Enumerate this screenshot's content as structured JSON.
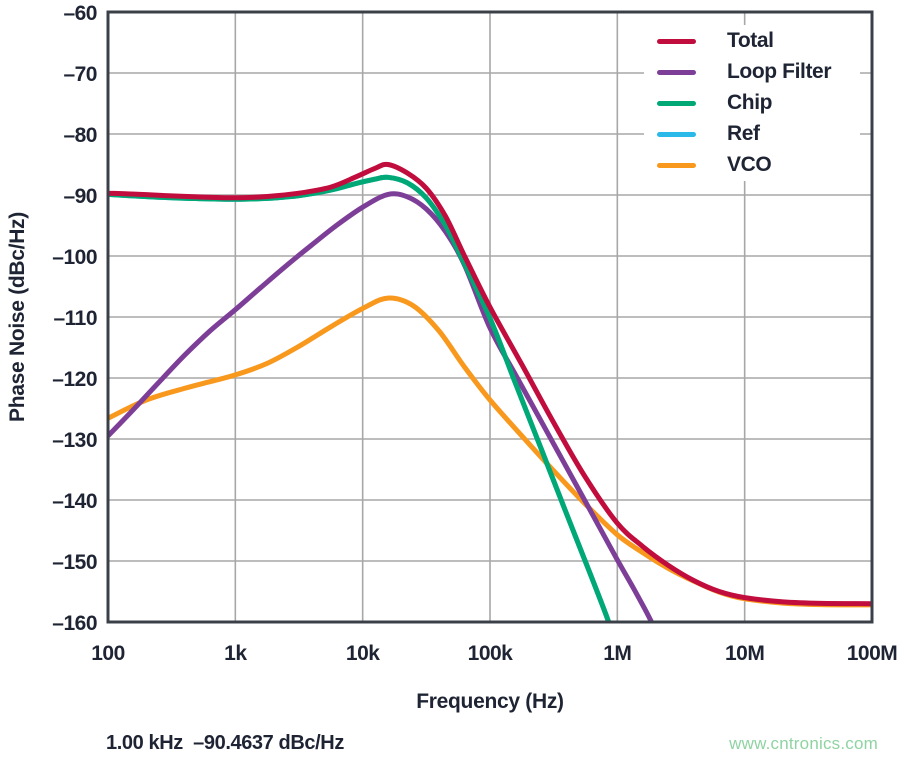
{
  "axes": {
    "x": {
      "label": "Frequency (Hz)",
      "ticks": [
        "100",
        "1k",
        "10k",
        "100k",
        "1M",
        "10M",
        "100M"
      ]
    },
    "y": {
      "label": "Phase Noise (dBc/Hz)",
      "ticks": [
        "–60",
        "–70",
        "–80",
        "–90",
        "–100",
        "–110",
        "–120",
        "–130",
        "–140",
        "–150",
        "–160"
      ]
    }
  },
  "legend": [
    {
      "label": "Total",
      "color": "#c00d3d"
    },
    {
      "label": "Loop Filter",
      "color": "#7d3e98"
    },
    {
      "label": "Chip",
      "color": "#00a876"
    },
    {
      "label": "Ref",
      "color": "#2bb9e9"
    },
    {
      "label": "VCO",
      "color": "#f8981d"
    }
  ],
  "marker_readout": "1.00 kHz  –90.4637 dBc/Hz",
  "watermark": "www.cntronics.com",
  "colors": {
    "frame": "#3b4048",
    "grid": "#a7a7a7",
    "text": "#1e2433"
  },
  "chart_data": {
    "type": "line",
    "title": "",
    "xlabel": "Frequency (Hz)",
    "ylabel": "Phase Noise (dBc/Hz)",
    "xscale": "log",
    "xlim": [
      100,
      100000000
    ],
    "ylim": [
      -160,
      -60
    ],
    "grid": true,
    "legend_position": "top-right",
    "marker": {
      "frequency_label": "1.00 kHz",
      "value_label": "–90.4637 dBc/Hz"
    },
    "series": [
      {
        "name": "Ref",
        "color": "#2bb9e9",
        "note": "hidden behind Chip curve in plot",
        "points": [
          [
            100,
            -89.9
          ],
          [
            178,
            -90.2
          ],
          [
            316,
            -90.45
          ],
          [
            562,
            -90.6
          ],
          [
            1000,
            -90.7
          ],
          [
            1780,
            -90.55
          ],
          [
            3160,
            -90.1
          ],
          [
            5620,
            -89.2
          ],
          [
            8910,
            -88.1
          ],
          [
            12600,
            -87.4
          ],
          [
            15800,
            -87.1
          ],
          [
            22400,
            -88.0
          ],
          [
            31600,
            -90.5
          ],
          [
            44700,
            -95.0
          ],
          [
            58900,
            -100.0
          ],
          [
            100000,
            -110.2
          ],
          [
            158000,
            -120.8
          ],
          [
            251000,
            -131.5
          ],
          [
            398000,
            -142.2
          ],
          [
            631000,
            -152.8
          ],
          [
            871000,
            -160.5
          ],
          [
            935000,
            -163.5
          ]
        ]
      },
      {
        "name": "VCO",
        "color": "#f8981d",
        "points": [
          [
            100,
            -126.6
          ],
          [
            200,
            -123.6
          ],
          [
            398,
            -121.7
          ],
          [
            631,
            -120.6
          ],
          [
            1000,
            -119.5
          ],
          [
            1780,
            -117.6
          ],
          [
            3160,
            -114.8
          ],
          [
            5620,
            -111.6
          ],
          [
            10000,
            -108.6
          ],
          [
            15800,
            -106.9
          ],
          [
            25100,
            -108.2
          ],
          [
            39800,
            -112.3
          ],
          [
            63100,
            -118.2
          ],
          [
            100000,
            -123.6
          ],
          [
            178000,
            -129.5
          ],
          [
            316000,
            -135.2
          ],
          [
            562000,
            -140.7
          ],
          [
            1000000,
            -145.7
          ],
          [
            1580000,
            -148.6
          ],
          [
            2510000,
            -151.2
          ],
          [
            3980000,
            -153.3
          ],
          [
            6310000,
            -155.1
          ],
          [
            10000000,
            -156.2
          ],
          [
            20000000,
            -156.9
          ],
          [
            40000000,
            -157.15
          ],
          [
            100000000,
            -157.2
          ]
        ]
      },
      {
        "name": "Loop Filter",
        "color": "#7d3e98",
        "points": [
          [
            100,
            -129.5
          ],
          [
            158,
            -125.2
          ],
          [
            251,
            -120.7
          ],
          [
            398,
            -116.3
          ],
          [
            631,
            -112.3
          ],
          [
            1000,
            -108.8
          ],
          [
            1580,
            -105.2
          ],
          [
            2510,
            -101.6
          ],
          [
            3980,
            -98.2
          ],
          [
            6310,
            -94.9
          ],
          [
            10000,
            -92.0
          ],
          [
            15800,
            -89.9
          ],
          [
            22400,
            -90.3
          ],
          [
            31600,
            -92.3
          ],
          [
            44700,
            -96.0
          ],
          [
            63100,
            -101.5
          ],
          [
            100000,
            -111.8
          ],
          [
            158000,
            -119.4
          ],
          [
            251000,
            -127.0
          ],
          [
            398000,
            -134.6
          ],
          [
            631000,
            -142.2
          ],
          [
            1000000,
            -149.8
          ],
          [
            1410000,
            -155.3
          ],
          [
            1900000,
            -160.5
          ],
          [
            2050000,
            -163.5
          ]
        ]
      },
      {
        "name": "Chip",
        "color": "#00a876",
        "points": [
          [
            100,
            -89.9
          ],
          [
            178,
            -90.2
          ],
          [
            316,
            -90.45
          ],
          [
            562,
            -90.6
          ],
          [
            1000,
            -90.7
          ],
          [
            1780,
            -90.55
          ],
          [
            3160,
            -90.1
          ],
          [
            5620,
            -89.2
          ],
          [
            8910,
            -88.1
          ],
          [
            12600,
            -87.4
          ],
          [
            15800,
            -87.1
          ],
          [
            22400,
            -88.0
          ],
          [
            31600,
            -90.5
          ],
          [
            44700,
            -95.0
          ],
          [
            58900,
            -100.0
          ],
          [
            100000,
            -110.2
          ],
          [
            158000,
            -120.8
          ],
          [
            251000,
            -131.5
          ],
          [
            398000,
            -142.2
          ],
          [
            631000,
            -152.8
          ],
          [
            871000,
            -160.5
          ],
          [
            935000,
            -163.5
          ]
        ]
      },
      {
        "name": "Total",
        "color": "#c00d3d",
        "points": [
          [
            100,
            -89.7
          ],
          [
            178,
            -89.9
          ],
          [
            316,
            -90.15
          ],
          [
            562,
            -90.35
          ],
          [
            1000,
            -90.46
          ],
          [
            1780,
            -90.25
          ],
          [
            3160,
            -89.7
          ],
          [
            5620,
            -88.7
          ],
          [
            8910,
            -87.0
          ],
          [
            12600,
            -85.6
          ],
          [
            15800,
            -85.0
          ],
          [
            22400,
            -86.4
          ],
          [
            31600,
            -88.9
          ],
          [
            44700,
            -93.5
          ],
          [
            63100,
            -100.0
          ],
          [
            100000,
            -108.4
          ],
          [
            178000,
            -117.8
          ],
          [
            316000,
            -127.3
          ],
          [
            562000,
            -136.3
          ],
          [
            1000000,
            -143.8
          ],
          [
            1580000,
            -147.6
          ],
          [
            2510000,
            -150.7
          ],
          [
            3980000,
            -153.2
          ],
          [
            6310000,
            -155.0
          ],
          [
            10000000,
            -156.0
          ],
          [
            20000000,
            -156.7
          ],
          [
            40000000,
            -156.95
          ],
          [
            100000000,
            -157.0
          ]
        ]
      }
    ]
  }
}
